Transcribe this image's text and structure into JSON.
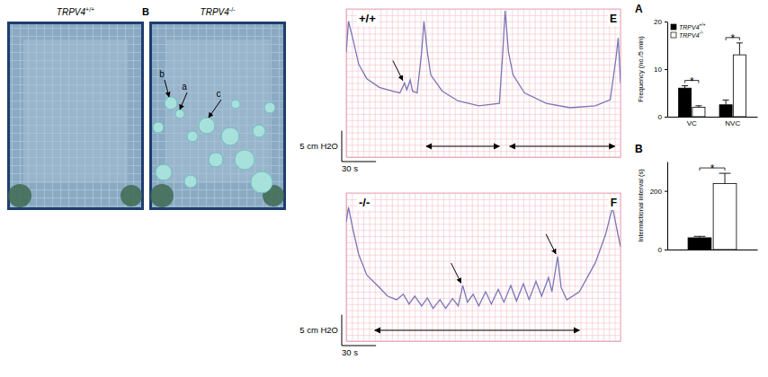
{
  "images": [
    {
      "title": "TRPV4+/+"
    },
    {
      "title": "TRPV4-/-",
      "letter": "B",
      "labels": [
        "b",
        "a",
        "c"
      ]
    }
  ],
  "chart_data": [
    {
      "type": "line",
      "title": "+/+",
      "letter": "E",
      "x": [
        0,
        2,
        6,
        11,
        18,
        29,
        40,
        47,
        51,
        53,
        56,
        58,
        62,
        66,
        68,
        71,
        74,
        84,
        98,
        116,
        134,
        137,
        139,
        142,
        146,
        156,
        175,
        196,
        218,
        231,
        236,
        238,
        240
      ],
      "values": [
        17,
        22,
        19,
        15,
        12.7,
        11.3,
        10.7,
        10.4,
        12,
        10.9,
        12.5,
        10.7,
        10.4,
        17,
        22,
        17,
        13.3,
        10.7,
        9.1,
        8.3,
        8.7,
        17,
        23.7,
        17,
        13.3,
        10.4,
        8.7,
        8,
        8.3,
        9.3,
        16,
        19.3,
        12
      ],
      "color": "#7a76b6",
      "xlim": [
        0,
        240
      ],
      "ylim": [
        0,
        24
      ],
      "xticks": [
        0,
        5,
        10,
        15,
        20,
        25,
        30,
        35,
        40,
        45,
        50,
        55,
        60,
        65,
        70,
        75,
        80,
        85,
        90,
        95,
        100,
        105,
        110,
        115,
        120,
        125,
        130,
        135,
        140,
        145,
        150,
        155,
        160,
        165,
        170,
        175,
        180,
        185,
        190,
        195,
        200,
        205,
        210,
        215,
        220,
        225,
        230,
        235,
        240
      ],
      "yticks": [
        0,
        1,
        2,
        3,
        4,
        5,
        6,
        7,
        8,
        9,
        10,
        11,
        12,
        13,
        14,
        15,
        16,
        17,
        18,
        19,
        20,
        21,
        22,
        23,
        24
      ],
      "grid": true,
      "tick_labels": false,
      "scale_bar": {
        "x": 30,
        "x_label": "30 s",
        "y": 5,
        "y_label": "5 cm H2O"
      },
      "arrows": [
        51
      ],
      "intervals": [
        [
          70,
          134
        ],
        [
          143,
          235
        ]
      ]
    },
    {
      "type": "line",
      "title": "-/-",
      "letter": "F",
      "x": [
        0,
        2,
        6,
        11,
        18,
        29,
        36,
        44,
        50,
        55,
        60,
        66,
        71,
        76,
        82,
        87,
        93,
        98,
        102,
        106,
        111,
        116,
        122,
        127,
        133,
        138,
        144,
        149,
        155,
        160,
        166,
        171,
        177,
        180,
        185,
        188,
        193,
        204,
        218,
        227,
        233,
        237,
        240
      ],
      "values": [
        19.3,
        21.7,
        18,
        14,
        10.7,
        8.7,
        7.3,
        6.7,
        7.6,
        6,
        7.3,
        5.7,
        7,
        5.3,
        6.7,
        5.3,
        6.9,
        5.7,
        9,
        6.3,
        7.6,
        5.7,
        8,
        6,
        8.4,
        6.3,
        9,
        6.5,
        9.3,
        6.7,
        9.7,
        7.3,
        10.3,
        8,
        13.7,
        8.7,
        6.7,
        8,
        12.7,
        17.3,
        21.7,
        18,
        15.3
      ],
      "color": "#7a76b6",
      "xlim": [
        0,
        240
      ],
      "ylim": [
        0,
        24
      ],
      "xticks": [
        0,
        5,
        10,
        15,
        20,
        25,
        30,
        35,
        40,
        45,
        50,
        55,
        60,
        65,
        70,
        75,
        80,
        85,
        90,
        95,
        100,
        105,
        110,
        115,
        120,
        125,
        130,
        135,
        140,
        145,
        150,
        155,
        160,
        165,
        170,
        175,
        180,
        185,
        190,
        195,
        200,
        205,
        210,
        215,
        220,
        225,
        230,
        235,
        240
      ],
      "yticks": [
        0,
        1,
        2,
        3,
        4,
        5,
        6,
        7,
        8,
        9,
        10,
        11,
        12,
        13,
        14,
        15,
        16,
        17,
        18,
        19,
        20,
        21,
        22,
        23,
        24
      ],
      "grid": true,
      "tick_labels": false,
      "scale_bar": {
        "x": 30,
        "x_label": "30 s",
        "y": 5,
        "y_label": "5 cm H2O"
      },
      "arrows": [
        102,
        185
      ],
      "intervals": [
        [
          25,
          204
        ]
      ]
    },
    {
      "type": "bar",
      "letter": "A",
      "categories": [
        "VC",
        "NVC"
      ],
      "series": [
        {
          "name": "TRPV4+/+",
          "color": "#000000",
          "values": [
            6,
            2.5
          ],
          "errors": [
            0.5,
            1
          ]
        },
        {
          "name": "TRPV4-/-",
          "color": "#ffffff",
          "values": [
            2,
            13
          ],
          "errors": [
            0.3,
            2.5
          ]
        }
      ],
      "y_label": "Frequency (no./5 min)",
      "ylim": [
        0,
        20
      ],
      "yticks": [
        0,
        10,
        20
      ],
      "legend": "upper left",
      "significance": [
        "*",
        "*"
      ]
    },
    {
      "type": "bar",
      "letter": "B",
      "categories": [
        null
      ],
      "series": [
        {
          "color": "#000000",
          "values": [
            40
          ],
          "errors": [
            5
          ]
        },
        {
          "color": "#ffffff",
          "values": [
            225
          ],
          "errors": [
            35
          ]
        }
      ],
      "y_label": "Intermictional interval (s)",
      "ylim": [
        0,
        300
      ],
      "yticks": [
        0,
        200
      ],
      "tick_labels": "y",
      "significance": [
        "*"
      ]
    }
  ]
}
